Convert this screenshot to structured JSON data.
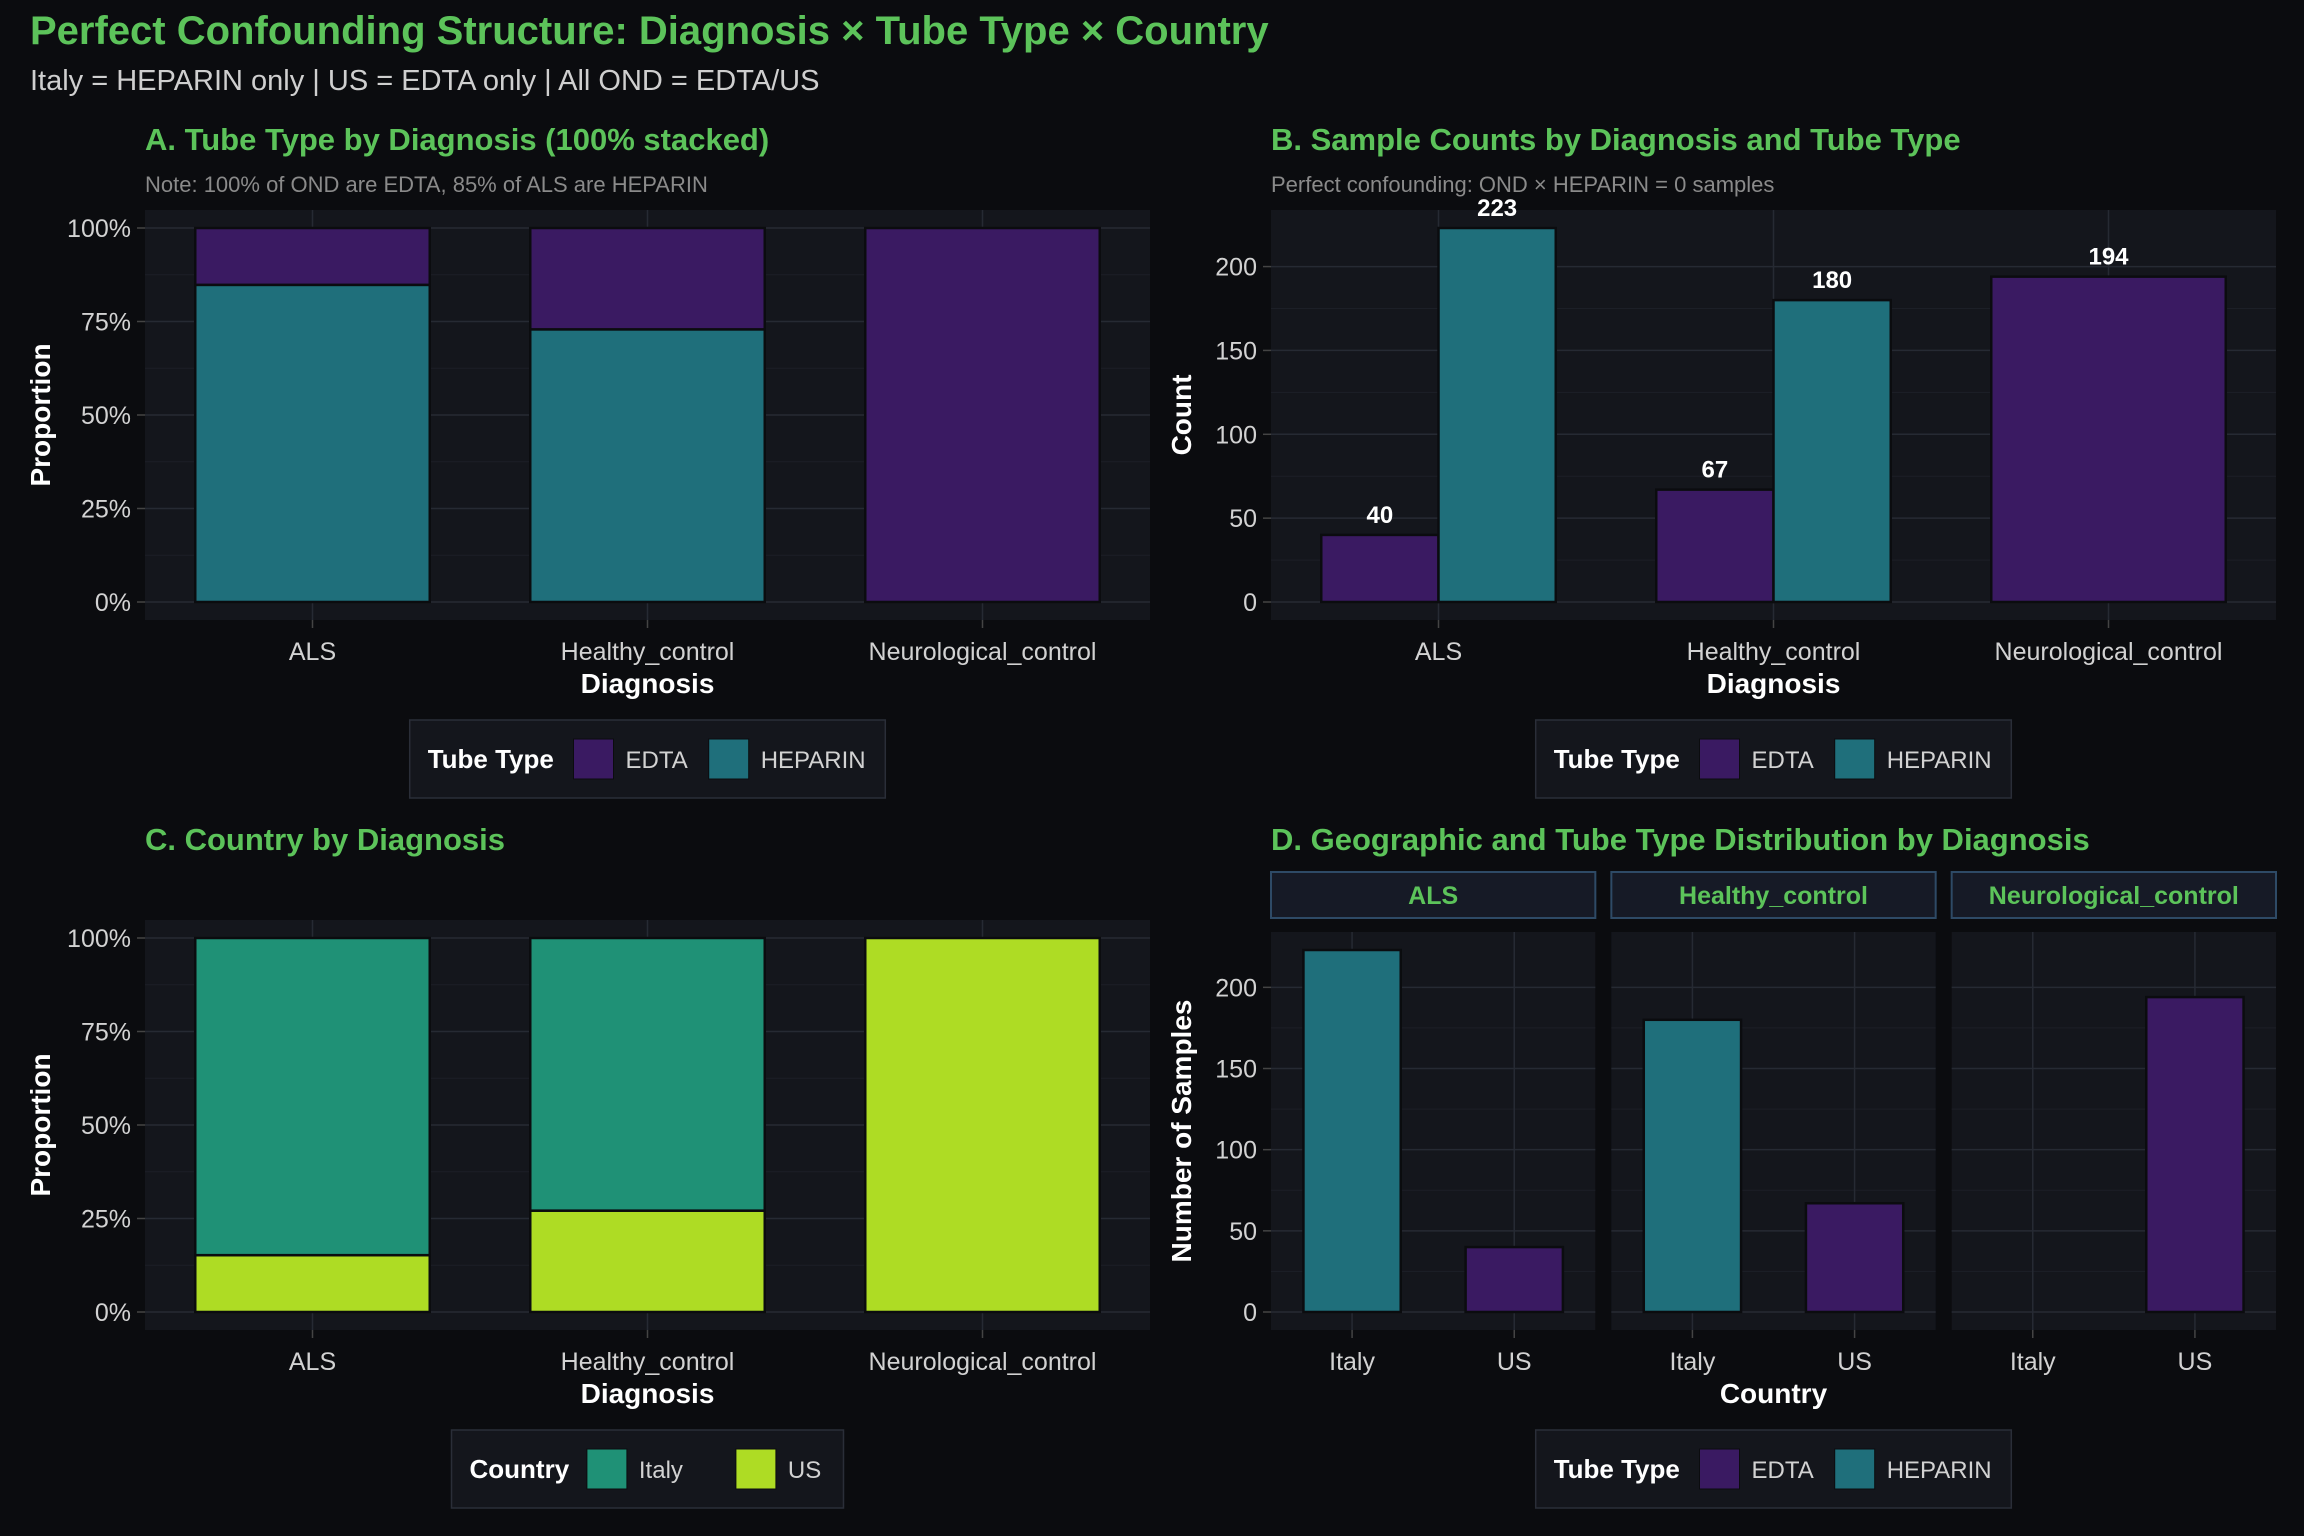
{
  "title": "Perfect Confounding Structure: Diagnosis × Tube Type × Country",
  "subtitle": "Italy = HEPARIN only | US = EDTA only | All OND = EDTA/US",
  "colors": {
    "EDTA": "#3a1a62",
    "HEPARIN": "#1f6f7b",
    "Italy": "#1f9176",
    "US": "#aedc24",
    "title_green": "#5cc35a",
    "panel_bg": "#14161c",
    "page_bg": "#0b0c0f"
  },
  "chart_data": [
    {
      "type": "bar",
      "stacked": "percent",
      "title": "A. Tube Type by Diagnosis (100% stacked)",
      "subtitle": "Note: 100% of OND are EDTA, 85% of ALS are HEPARIN",
      "xlabel": "Diagnosis",
      "ylabel": "Proportion",
      "categories": [
        "ALS",
        "Healthy_control",
        "Neurological_control"
      ],
      "series": [
        {
          "name": "HEPARIN",
          "values": [
            0.848,
            0.729,
            0.0
          ]
        },
        {
          "name": "EDTA",
          "values": [
            0.152,
            0.271,
            1.0
          ]
        }
      ],
      "yticks": [
        "0%",
        "25%",
        "50%",
        "75%",
        "100%"
      ],
      "ylim": [
        0,
        1
      ],
      "legend": {
        "title": "Tube Type",
        "items": [
          "EDTA",
          "HEPARIN"
        ],
        "position": "bottom"
      },
      "grid": true
    },
    {
      "type": "bar",
      "stacked": "dodge",
      "title": "B. Sample Counts by Diagnosis and Tube Type",
      "subtitle": "Perfect confounding: OND × HEPARIN = 0 samples",
      "xlabel": "Diagnosis",
      "ylabel": "Count",
      "categories": [
        "ALS",
        "Healthy_control",
        "Neurological_control"
      ],
      "series": [
        {
          "name": "EDTA",
          "values": [
            40,
            67,
            194
          ]
        },
        {
          "name": "HEPARIN",
          "values": [
            223,
            180,
            0
          ]
        }
      ],
      "data_labels": [
        "40",
        "223",
        "67",
        "180",
        "194"
      ],
      "yticks": [
        "0",
        "50",
        "100",
        "150",
        "200"
      ],
      "ylim": [
        0,
        223
      ],
      "legend": {
        "title": "Tube Type",
        "items": [
          "EDTA",
          "HEPARIN"
        ],
        "position": "bottom"
      },
      "grid": true
    },
    {
      "type": "bar",
      "stacked": "percent",
      "title": "C. Country by Diagnosis",
      "xlabel": "Diagnosis",
      "ylabel": "Proportion",
      "categories": [
        "ALS",
        "Healthy_control",
        "Neurological_control"
      ],
      "series": [
        {
          "name": "US",
          "values": [
            0.152,
            0.271,
            1.0
          ]
        },
        {
          "name": "Italy",
          "values": [
            0.848,
            0.729,
            0.0
          ]
        }
      ],
      "yticks": [
        "0%",
        "25%",
        "50%",
        "75%",
        "100%"
      ],
      "ylim": [
        0,
        1
      ],
      "legend": {
        "title": "Country",
        "items": [
          "Italy",
          "US"
        ],
        "position": "bottom"
      },
      "grid": true
    },
    {
      "type": "bar",
      "faceted": true,
      "title": "D. Geographic and Tube Type Distribution by Diagnosis",
      "xlabel": "Country",
      "ylabel": "Number of Samples",
      "facets": [
        {
          "name": "ALS",
          "categories": [
            "Italy",
            "US"
          ],
          "values": [
            223,
            40
          ],
          "fills": [
            "HEPARIN",
            "EDTA"
          ]
        },
        {
          "name": "Healthy_control",
          "categories": [
            "Italy",
            "US"
          ],
          "values": [
            180,
            67
          ],
          "fills": [
            "HEPARIN",
            "EDTA"
          ]
        },
        {
          "name": "Neurological_control",
          "categories": [
            "Italy",
            "US"
          ],
          "values": [
            0,
            194
          ],
          "fills": [
            "HEPARIN",
            "EDTA"
          ]
        }
      ],
      "yticks": [
        "0",
        "50",
        "100",
        "150",
        "200"
      ],
      "ylim": [
        0,
        223
      ],
      "legend": {
        "title": "Tube Type",
        "items": [
          "EDTA",
          "HEPARIN"
        ],
        "position": "bottom"
      },
      "grid": true
    }
  ]
}
